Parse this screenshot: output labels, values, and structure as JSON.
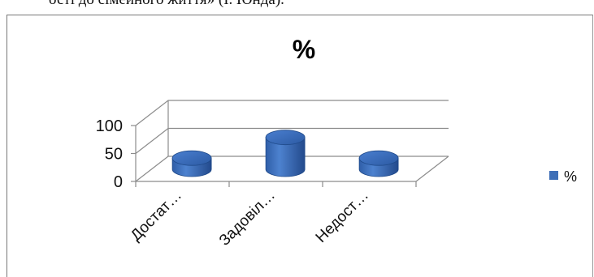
{
  "document": {
    "top_text": "ості до сімейного життя» (І. Юнда)."
  },
  "chart_data": {
    "type": "bar",
    "style": "3d-cylinder",
    "title": "%",
    "categories": [
      "Достат…",
      "Задовіл…",
      "Недост…"
    ],
    "series": [
      {
        "name": "%",
        "values": [
          20,
          57,
          20
        ],
        "color": "#3f6fb7"
      }
    ],
    "ylim": [
      0,
      100
    ],
    "yticks": [
      "0",
      "50",
      "100"
    ],
    "grid": true,
    "legend": "right"
  }
}
